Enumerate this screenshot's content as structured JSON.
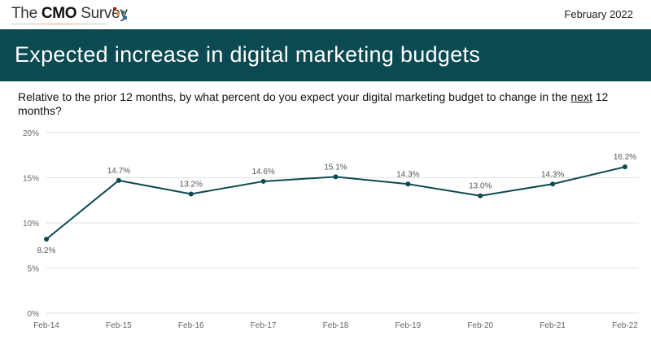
{
  "header": {
    "logo_text_pre": "The ",
    "logo_text_bold": "CMO",
    "logo_text_post": " Survey",
    "date": "February 2022",
    "title": "Expected increase in digital marketing budgets"
  },
  "question": {
    "pre": "Relative to the prior 12 months, by what percent do you expect your digital marketing budget to change in the ",
    "underlined": "next",
    "post": " 12 months?"
  },
  "colors": {
    "band": "#0b4a51",
    "line": "#0b4a51"
  },
  "chart_data": {
    "type": "line",
    "categories": [
      "Feb-14",
      "Feb-15",
      "Feb-16",
      "Feb-17",
      "Feb-18",
      "Feb-19",
      "Feb-20",
      "Feb-21",
      "Feb-22"
    ],
    "values": [
      8.2,
      14.7,
      13.2,
      14.6,
      15.1,
      14.3,
      13.0,
      14.3,
      16.2
    ],
    "data_labels": [
      "8.2%",
      "14.7%",
      "13.2%",
      "14.6%",
      "15.1%",
      "14.3%",
      "13.0%",
      "14.3%",
      "16.2%"
    ],
    "yticks": [
      "0%",
      "5%",
      "10%",
      "15%",
      "20%"
    ],
    "ylim": [
      0,
      20
    ],
    "grid": true
  }
}
